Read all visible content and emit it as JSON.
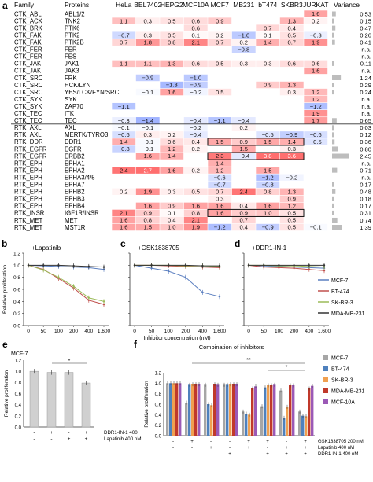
{
  "heatmap": {
    "panel_label": "a",
    "headers": [
      "Family",
      "Proteins",
      "HeLa",
      "BEL7402",
      "HEPG2",
      "MCF10A",
      "MCF7",
      "MB231",
      "bT474",
      "SKBR3",
      "JURKAT",
      "Variance"
    ],
    "rows": [
      {
        "family": "CTK_ABL",
        "protein": "ABL1/2",
        "values": [
          null,
          null,
          null,
          null,
          null,
          null,
          null,
          null,
          1.6
        ],
        "variance": 0.53
      },
      {
        "family": "CTK_ACK",
        "protein": "TNK2",
        "values": [
          1.1,
          0.3,
          0.5,
          0.6,
          0.9,
          null,
          null,
          1.3,
          0.2
        ],
        "variance": 0.15
      },
      {
        "family": "CTK_BRK",
        "protein": "PTK6",
        "values": [
          null,
          null,
          null,
          0.6,
          null,
          null,
          0.7,
          0.4,
          null
        ],
        "variance": 0.47
      },
      {
        "family": "CTK_FAK",
        "protein": "PTK2",
        "values": [
          -0.7,
          0.3,
          0.5,
          0.1,
          0.2,
          -1.0,
          0.1,
          0.5,
          -0.3
        ],
        "variance": 0.26
      },
      {
        "family": "CTK_FAK",
        "protein": "PTK2B",
        "values": [
          0.7,
          1.8,
          0.8,
          2.1,
          0.7,
          0.2,
          1.4,
          0.7,
          1.9
        ],
        "variance": 0.41
      },
      {
        "family": "CTK_FER",
        "protein": "FER",
        "values": [
          null,
          null,
          null,
          null,
          null,
          -0.8,
          null,
          null,
          null
        ],
        "variance": null
      },
      {
        "family": "CTK_FER",
        "protein": "FES",
        "values": [
          null,
          null,
          null,
          null,
          null,
          null,
          null,
          null,
          null
        ],
        "variance": null
      },
      {
        "family": "CTK_JAK",
        "protein": "JAK1",
        "values": [
          1.1,
          1.1,
          1.3,
          0.6,
          0.5,
          0.3,
          0.3,
          0.6,
          0.6
        ],
        "variance": 0.11
      },
      {
        "family": "CTK_JAK",
        "protein": "JAK3",
        "values": [
          null,
          null,
          null,
          null,
          null,
          null,
          null,
          null,
          1.6
        ],
        "variance": null
      },
      {
        "family": "CTK_SRC",
        "protein": "FRK",
        "values": [
          null,
          -0.9,
          null,
          -1.0,
          null,
          null,
          null,
          null,
          null
        ],
        "variance": 1.24
      },
      {
        "family": "CTK_SRC",
        "protein": "HCK/LYN",
        "values": [
          null,
          null,
          -1.3,
          -0.9,
          null,
          null,
          0.9,
          1.3,
          null
        ],
        "variance": 0.29
      },
      {
        "family": "CTK_SRC",
        "protein": "YES/LCK/FYN/SRC",
        "values": [
          null,
          -0.1,
          1.6,
          -0.2,
          0.5,
          null,
          null,
          0.3,
          1.2
        ],
        "variance": 0.24
      },
      {
        "family": "CTK_SYK",
        "protein": "SYK",
        "values": [
          null,
          null,
          null,
          null,
          null,
          null,
          null,
          null,
          1.2
        ],
        "variance": null
      },
      {
        "family": "CTK_SYK",
        "protein": "ZAP70",
        "values": [
          -1.1,
          null,
          null,
          null,
          null,
          null,
          null,
          null,
          -1.2
        ],
        "variance": null
      },
      {
        "family": "CTK_TEC",
        "protein": "ITK",
        "values": [
          null,
          null,
          null,
          null,
          null,
          null,
          null,
          null,
          1.9
        ],
        "variance": null
      },
      {
        "family": "CTK_TEC",
        "protein": "TEC",
        "values": [
          -0.3,
          -1.4,
          null,
          -0.4,
          -1.1,
          -0.4,
          null,
          null,
          1.7
        ],
        "variance": 0.65
      },
      {
        "family": "RTK_AXL",
        "protein": "AXL",
        "values": [
          -0.1,
          -0.1,
          null,
          -0.2,
          null,
          0.2,
          null,
          null,
          null
        ],
        "variance": 0.03
      },
      {
        "family": "RTK_AXL",
        "protein": "MERTK/TYRO3",
        "values": [
          -0.6,
          0.3,
          0.2,
          -0.4,
          null,
          null,
          -0.5,
          -0.9,
          -0.6
        ],
        "variance": 0.12
      },
      {
        "family": "RTK_DDR",
        "protein": "DDR1",
        "values": [
          1.4,
          -0.1,
          0.6,
          0.4,
          1.5,
          0.9,
          1.5,
          1.4,
          -0.5
        ],
        "variance": 0.36
      },
      {
        "family": "RTK_EGFR",
        "protein": "EGFR",
        "values": [
          -0.8,
          -0.1,
          1.2,
          0.2,
          null,
          1.5,
          null,
          0.3,
          null
        ],
        "variance": 0.8
      },
      {
        "family": "RTK_EGFR",
        "protein": "ERBB2",
        "values": [
          null,
          1.6,
          1.4,
          null,
          2.3,
          -0.4,
          3.8,
          3.6,
          null
        ],
        "variance": 2.45
      },
      {
        "family": "RTK_EPH",
        "protein": "EPHA1",
        "values": [
          null,
          null,
          null,
          null,
          1.4,
          null,
          null,
          null,
          null
        ],
        "variance": null
      },
      {
        "family": "RTK_EPH",
        "protein": "EPHA2",
        "values": [
          2.4,
          2.7,
          1.6,
          0.2,
          1.2,
          null,
          1.5,
          null,
          null
        ],
        "variance": 0.71
      },
      {
        "family": "RTK_EPH",
        "protein": "EPHA3/4/5",
        "values": [
          null,
          null,
          null,
          null,
          -0.6,
          null,
          -1.2,
          -0.2,
          null
        ],
        "variance": null
      },
      {
        "family": "RTK_EPH",
        "protein": "EPHA7",
        "values": [
          null,
          null,
          null,
          null,
          -0.7,
          null,
          -0.8,
          null,
          null
        ],
        "variance": 0.17
      },
      {
        "family": "RTK_EPH",
        "protein": "EPHB2",
        "values": [
          0.2,
          1.9,
          0.3,
          0.5,
          0.7,
          2.4,
          0.8,
          1.3,
          null
        ],
        "variance": 0.48
      },
      {
        "family": "RTK_EPH",
        "protein": "EPHB3",
        "values": [
          null,
          null,
          null,
          null,
          0.3,
          null,
          null,
          0.9,
          null
        ],
        "variance": 0.18
      },
      {
        "family": "RTK_EPH",
        "protein": "EPHB4",
        "values": [
          null,
          1.6,
          0.9,
          1.6,
          1.6,
          0.4,
          1.6,
          1.2,
          null
        ],
        "variance": 0.17
      },
      {
        "family": "RTK_INSR",
        "protein": "IGF1R/INSR",
        "values": [
          2.1,
          0.9,
          0.1,
          0.8,
          1.6,
          0.9,
          1.0,
          0.5,
          null
        ],
        "variance": 0.31
      },
      {
        "family": "RTK_MET",
        "protein": "MET",
        "values": [
          1.6,
          0.8,
          0.4,
          2.1,
          null,
          0.7,
          null,
          0.5,
          null
        ],
        "variance": 0.74
      },
      {
        "family": "RTK_MET",
        "protein": "MST1R",
        "values": [
          1.6,
          1.5,
          1.0,
          1.9,
          -1.2,
          0.4,
          -0.9,
          0.5,
          -0.1
        ],
        "variance": 1.39
      }
    ],
    "missing_variance_text": "n.a."
  },
  "panel_b": {
    "label": "b",
    "title": "+Lapatinib",
    "ylabel": "Relative proliferation",
    "x_ticks": [
      "0",
      "50",
      "100",
      "200",
      "400",
      "1,600"
    ]
  },
  "panel_c": {
    "label": "c",
    "title": "+GSK1838705",
    "xlabel": "Inhibitor concentration (nM)",
    "x_ticks": [
      "0",
      "50",
      "100",
      "200",
      "400",
      "1,600"
    ]
  },
  "panel_d": {
    "label": "d",
    "title": "+DDR1-IN-1",
    "x_ticks": [
      "0",
      "50",
      "100",
      "200",
      "400",
      "1,600"
    ]
  },
  "line_legend": [
    {
      "name": "MCF-7",
      "color": "#5b7fc0"
    },
    {
      "name": "BT-474",
      "color": "#c0504d"
    },
    {
      "name": "SK-BR-3",
      "color": "#9bbb59"
    },
    {
      "name": "MDA-MB-231",
      "color": "#333333"
    }
  ],
  "panel_e": {
    "label": "e",
    "title": "MCF-7",
    "ylabel": "Relative proliferation",
    "row1_label": "DDR1-IN-1 400",
    "row2_label": "Lapatinib 400 nM",
    "row1_signs": [
      "-",
      "+",
      "-",
      "+"
    ],
    "row2_signs": [
      "-",
      "-",
      "+",
      "+"
    ],
    "significance": "*"
  },
  "panel_f": {
    "label": "f",
    "title": "Combination of inhibitors",
    "ylabel": "Relative proliferation",
    "row1_label": "GSK1838705 200 nM",
    "row2_label": "Lapatinib 400 nM",
    "row3_label": "DDR1-IN-1 400 nM",
    "significance_top": "**",
    "significance_mid": "*"
  },
  "bar_legend": [
    {
      "name": "MCF-7",
      "color": "#a6a6a6"
    },
    {
      "name": "BT-474",
      "color": "#4f81bd"
    },
    {
      "name": "SK-BR-3",
      "color": "#f0a050"
    },
    {
      "name": "MDA-MB-231",
      "color": "#c0392b"
    },
    {
      "name": "MCF-10A",
      "color": "#9b59b6"
    }
  ],
  "chart_data": [
    {
      "type": "heatmap",
      "title": "",
      "columns": [
        "HeLa",
        "BEL7402",
        "HEPG2",
        "MCF10A",
        "MCF7",
        "MB231",
        "bT474",
        "SKBR3",
        "JURKAT"
      ],
      "note": "values listed in heatmap.rows"
    },
    {
      "type": "line",
      "title": "+Lapatinib",
      "categories": [
        "0",
        "50",
        "100",
        "200",
        "400",
        "1,600"
      ],
      "ylim": [
        0,
        1.2
      ],
      "series": [
        {
          "name": "MCF-7",
          "values": [
            1.0,
            0.99,
            0.98,
            0.97,
            0.96,
            0.93
          ]
        },
        {
          "name": "BT-474",
          "values": [
            1.0,
            0.93,
            0.78,
            0.62,
            0.42,
            0.35
          ]
        },
        {
          "name": "SK-BR-3",
          "values": [
            1.0,
            0.92,
            0.8,
            0.65,
            0.46,
            0.4
          ]
        },
        {
          "name": "MDA-MB-231",
          "values": [
            1.0,
            1.0,
            1.0,
            0.99,
            0.98,
            0.97
          ]
        }
      ]
    },
    {
      "type": "line",
      "title": "+GSK1838705",
      "xlabel": "Inhibitor concentration (nM)",
      "categories": [
        "0",
        "50",
        "100",
        "200",
        "400",
        "1,600"
      ],
      "ylim": [
        0,
        1.2
      ],
      "series": [
        {
          "name": "MCF-7",
          "values": [
            1.0,
            0.95,
            0.9,
            0.8,
            0.55,
            0.48
          ]
        },
        {
          "name": "BT-474",
          "values": [
            1.0,
            1.0,
            0.99,
            0.98,
            0.97,
            0.96
          ]
        },
        {
          "name": "SK-BR-3",
          "values": [
            1.0,
            1.0,
            1.0,
            0.99,
            0.99,
            0.98
          ]
        },
        {
          "name": "MDA-MB-231",
          "values": [
            1.0,
            1.0,
            1.0,
            1.0,
            0.99,
            0.99
          ]
        }
      ]
    },
    {
      "type": "line",
      "title": "+DDR1-IN-1",
      "categories": [
        "0",
        "50",
        "100",
        "200",
        "400",
        "1,600"
      ],
      "ylim": [
        0,
        1.2
      ],
      "series": [
        {
          "name": "MCF-7",
          "values": [
            1.0,
            0.99,
            0.98,
            0.97,
            0.96,
            0.95
          ]
        },
        {
          "name": "BT-474",
          "values": [
            1.0,
            0.97,
            0.96,
            0.95,
            0.93,
            0.91
          ]
        },
        {
          "name": "SK-BR-3",
          "values": [
            1.0,
            1.0,
            0.99,
            0.99,
            0.98,
            0.97
          ]
        },
        {
          "name": "MDA-MB-231",
          "values": [
            1.0,
            1.0,
            1.0,
            1.0,
            1.0,
            1.0
          ]
        }
      ]
    },
    {
      "type": "bar",
      "title": "MCF-7",
      "categories": [
        "control",
        "DDR1-IN-1",
        "Lapatinib",
        "DDR1-IN-1 + Lapatinib"
      ],
      "values": [
        1.0,
        0.98,
        0.98,
        0.79
      ],
      "ylim": [
        0,
        1.2
      ]
    },
    {
      "type": "bar",
      "title": "Combination of inhibitors",
      "ylim": [
        0,
        1.2
      ],
      "categories": [
        "none",
        "GSK",
        "Lap",
        "DDR1",
        "GSK+Lap",
        "GSK+DDR1",
        "Lap+DDR1",
        "GSK+Lap+DDR1"
      ],
      "series": [
        {
          "name": "MCF-7",
          "values": [
            1.0,
            0.63,
            0.97,
            0.97,
            0.46,
            0.56,
            0.86,
            0.46
          ]
        },
        {
          "name": "BT-474",
          "values": [
            1.0,
            0.97,
            0.6,
            0.97,
            0.42,
            0.92,
            0.34,
            0.38
          ]
        },
        {
          "name": "SK-BR-3",
          "values": [
            1.0,
            0.98,
            0.58,
            0.98,
            0.4,
            0.96,
            0.55,
            0.37
          ]
        },
        {
          "name": "MDA-MB-231",
          "values": [
            1.0,
            0.98,
            0.98,
            0.98,
            0.9,
            0.96,
            0.96,
            0.9
          ]
        },
        {
          "name": "MCF-10A",
          "values": [
            1.0,
            0.98,
            0.97,
            0.98,
            0.94,
            0.97,
            0.96,
            0.95
          ]
        }
      ]
    }
  ]
}
